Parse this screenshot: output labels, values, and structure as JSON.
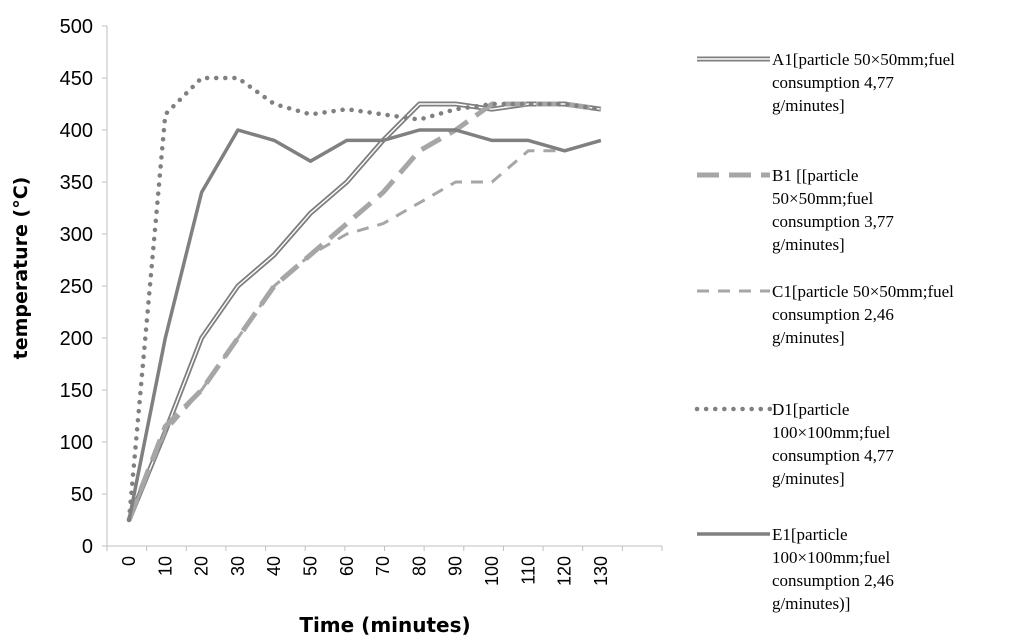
{
  "chart_data": {
    "type": "line",
    "title": "",
    "xlabel": "Time (minutes)",
    "ylabel": "temperature  (°C)",
    "ylim": [
      0,
      500
    ],
    "xlim": [
      0,
      130
    ],
    "yticks": [
      "0",
      "50",
      "100",
      "150",
      "200",
      "250",
      "300",
      "350",
      "400",
      "450",
      "500"
    ],
    "xticks": [
      "0",
      "10",
      "20",
      "30",
      "40",
      "50",
      "60",
      "70",
      "80",
      "90",
      "100",
      "110",
      "120",
      "130"
    ],
    "grid": false,
    "legend_position": "right",
    "series": [
      {
        "name": "A1[particle 50×50mm;fuel consumption 4,77 g/minutes]",
        "legend_lines": [
          "A1[particle 50×50mm;fuel",
          "consumption 4,77",
          "g/minutes]"
        ],
        "style": "double",
        "color": "#7f7f7f",
        "x": [
          0,
          10,
          20,
          30,
          40,
          50,
          60,
          70,
          80,
          90,
          100,
          110,
          120,
          130
        ],
        "y": [
          25,
          110,
          200,
          250,
          280,
          320,
          350,
          390,
          425,
          425,
          420,
          425,
          425,
          420
        ]
      },
      {
        "name": "B1 [[particle 50×50mm;fuel consumption 3,77 g/minutes]",
        "legend_lines": [
          "B1 [[particle",
          "50×50mm;fuel",
          "consumption 3,77",
          "g/minutes]"
        ],
        "style": "longdash",
        "color": "#a6a6a6",
        "x": [
          0,
          10,
          20,
          30,
          40,
          50,
          60,
          70,
          80,
          90,
          100,
          110,
          120,
          130
        ],
        "y": [
          25,
          115,
          150,
          200,
          250,
          280,
          310,
          340,
          380,
          400,
          425,
          425,
          425,
          420
        ]
      },
      {
        "name": "C1[particle 50×50mm;fuel consumption 2,46 g/minutes]",
        "legend_lines": [
          "C1[particle 50×50mm;fuel",
          "consumption 2,46",
          "g/minutes]"
        ],
        "style": "dash",
        "color": "#a6a6a6",
        "x": [
          0,
          10,
          20,
          30,
          40,
          50,
          60,
          70,
          80,
          90,
          100,
          110,
          120,
          130
        ],
        "y": [
          25,
          110,
          150,
          200,
          250,
          280,
          300,
          310,
          330,
          350,
          350,
          380,
          380,
          390
        ]
      },
      {
        "name": "D1[particle 100×100mm;fuel consumption 4,77 g/minutes]",
        "legend_lines": [
          "D1[particle",
          "100×100mm;fuel",
          "consumption 4,77",
          "g/minutes]"
        ],
        "style": "dotted",
        "color": "#808080",
        "x": [
          0,
          10,
          20,
          30,
          40,
          50,
          60,
          70,
          80,
          90,
          100,
          110,
          120,
          130
        ],
        "y": [
          25,
          415,
          450,
          450,
          425,
          415,
          420,
          415,
          410,
          420,
          425,
          425,
          425,
          420
        ]
      },
      {
        "name": "E1[particle 100×100mm;fuel consumption 2,46 g/minutes)]",
        "legend_lines": [
          "E1[particle",
          "100×100mm;fuel",
          "consumption 2,46",
          "g/minutes)]"
        ],
        "style": "solid",
        "color": "#808080",
        "x": [
          0,
          10,
          20,
          30,
          40,
          50,
          60,
          70,
          80,
          90,
          100,
          110,
          120,
          130
        ],
        "y": [
          25,
          200,
          340,
          400,
          390,
          370,
          390,
          390,
          400,
          400,
          390,
          390,
          380,
          390
        ]
      }
    ]
  }
}
